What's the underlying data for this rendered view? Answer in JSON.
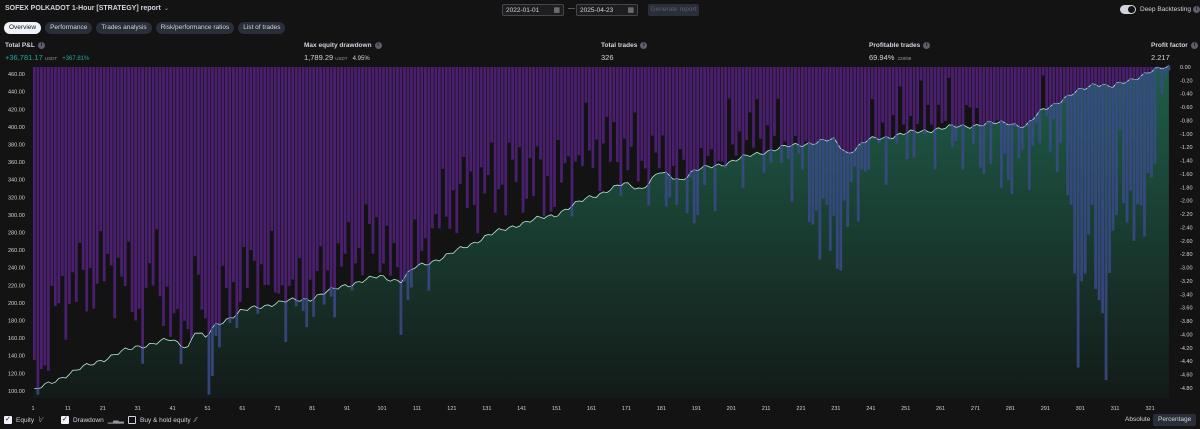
{
  "header": {
    "title": "SOFEX POLKADOT 1-Hour [STRATEGY] report",
    "date_from": "2022-01-01",
    "date_to": "2025-04-23",
    "separator": "—",
    "generate_label": "Generate report",
    "deep_backtesting_label": "Deep Backtesting"
  },
  "tabs": [
    {
      "label": "Overview",
      "active": true
    },
    {
      "label": "Performance",
      "active": false
    },
    {
      "label": "Trades analysis",
      "active": false
    },
    {
      "label": "Risk/performance ratios",
      "active": false
    },
    {
      "label": "List of trades",
      "active": false
    }
  ],
  "metrics": {
    "total_pl": {
      "label": "Total P&L",
      "value": "+36,781.17",
      "unit": "USDT",
      "pct": "+367.81%"
    },
    "max_dd": {
      "label": "Max equity drawdown",
      "value": "1,789.29",
      "unit": "USDT",
      "pct": "4.95%"
    },
    "total_trades": {
      "label": "Total trades",
      "value": "326"
    },
    "profitable": {
      "label": "Profitable trades",
      "value": "69.94%",
      "ratio": "228/98"
    },
    "profit_factor": {
      "label": "Profit factor",
      "value": "2.217"
    }
  },
  "bottom": {
    "equity_label": "Equity",
    "drawdown_label": "Drawdown",
    "buyhold_label": "Buy & hold equity",
    "absolute_label": "Absolute",
    "percentage_label": "Percentage"
  },
  "colors": {
    "equity_fill_top": "#1f5e4a",
    "equity_fill_bottom": "#131a17",
    "equity_line": "#b9e6d6",
    "drawdown_bar": "#4a1f6e",
    "drawdown_bar_under": "#3b4a8a"
  },
  "chart_data": {
    "type": "area",
    "series": [
      {
        "name": "Equity",
        "axis": "left"
      },
      {
        "name": "Drawdown",
        "axis": "right"
      }
    ],
    "x_ticks": [
      1,
      11,
      21,
      31,
      41,
      51,
      61,
      71,
      81,
      91,
      101,
      111,
      121,
      131,
      141,
      151,
      161,
      171,
      181,
      191,
      201,
      211,
      221,
      231,
      241,
      251,
      261,
      271,
      281,
      291,
      301,
      311,
      321
    ],
    "x_range": [
      1,
      326
    ],
    "y_left_ticks": [
      "100.00",
      "120.00",
      "140.00",
      "160.00",
      "180.00",
      "200.00",
      "220.00",
      "240.00",
      "260.00",
      "280.00",
      "300.00",
      "320.00",
      "340.00",
      "360.00",
      "380.00",
      "400.00",
      "420.00",
      "440.00",
      "460.00"
    ],
    "y_left_range": [
      92,
      468
    ],
    "y_right_ticks": [
      "0.00",
      "-0.20",
      "-0.40",
      "-0.60",
      "-0.80",
      "-1.00",
      "-1.20",
      "-1.40",
      "-1.60",
      "-1.80",
      "-2.00",
      "-2.20",
      "-2.40",
      "-2.60",
      "-2.80",
      "-3.00",
      "-3.20",
      "-3.40",
      "-3.60",
      "-3.80",
      "-4.00",
      "-4.20",
      "-4.40",
      "-4.60",
      "-4.80"
    ],
    "y_right_range": [
      -4.95,
      0
    ],
    "equity_keypoints": [
      [
        1,
        100
      ],
      [
        10,
        118
      ],
      [
        20,
        135
      ],
      [
        30,
        150
      ],
      [
        40,
        158
      ],
      [
        45,
        150
      ],
      [
        47,
        168
      ],
      [
        50,
        160
      ],
      [
        53,
        175
      ],
      [
        60,
        190
      ],
      [
        70,
        200
      ],
      [
        80,
        205
      ],
      [
        90,
        220
      ],
      [
        100,
        230
      ],
      [
        106,
        225
      ],
      [
        110,
        240
      ],
      [
        120,
        255
      ],
      [
        130,
        275
      ],
      [
        140,
        290
      ],
      [
        150,
        300
      ],
      [
        160,
        320
      ],
      [
        170,
        335
      ],
      [
        175,
        330
      ],
      [
        180,
        348
      ],
      [
        186,
        340
      ],
      [
        190,
        350
      ],
      [
        200,
        360
      ],
      [
        210,
        372
      ],
      [
        220,
        380
      ],
      [
        230,
        385
      ],
      [
        234,
        370
      ],
      [
        240,
        385
      ],
      [
        250,
        392
      ],
      [
        260,
        398
      ],
      [
        270,
        402
      ],
      [
        280,
        405
      ],
      [
        285,
        400
      ],
      [
        290,
        420
      ],
      [
        300,
        440
      ],
      [
        305,
        450
      ],
      [
        310,
        445
      ],
      [
        320,
        462
      ],
      [
        326,
        468
      ]
    ],
    "drawdown_keypoints": [
      [
        1,
        -4.9
      ],
      [
        8,
        -3.5
      ],
      [
        15,
        -3.2
      ],
      [
        25,
        -3.0
      ],
      [
        32,
        -3.8
      ],
      [
        36,
        -2.9
      ],
      [
        42,
        -4.2
      ],
      [
        48,
        -3.2
      ],
      [
        51,
        -4.7
      ],
      [
        55,
        -3.6
      ],
      [
        65,
        -3.0
      ],
      [
        75,
        -3.5
      ],
      [
        86,
        -3.2
      ],
      [
        92,
        -2.8
      ],
      [
        100,
        -2.5
      ],
      [
        106,
        -3.4
      ],
      [
        112,
        -2.8
      ],
      [
        120,
        -2.0
      ],
      [
        130,
        -1.8
      ],
      [
        140,
        -1.6
      ],
      [
        150,
        -1.8
      ],
      [
        160,
        -1.2
      ],
      [
        170,
        -1.3
      ],
      [
        180,
        -1.5
      ],
      [
        190,
        -1.9
      ],
      [
        200,
        -1.2
      ],
      [
        210,
        -1.0
      ],
      [
        220,
        -1.4
      ],
      [
        226,
        -2.4
      ],
      [
        232,
        -2.6
      ],
      [
        240,
        -1.2
      ],
      [
        250,
        -0.9
      ],
      [
        260,
        -0.8
      ],
      [
        270,
        -1.0
      ],
      [
        282,
        -1.5
      ],
      [
        290,
        -0.8
      ],
      [
        296,
        -1.1
      ],
      [
        300,
        -3.8
      ],
      [
        303,
        -2.5
      ],
      [
        308,
        -4.0
      ],
      [
        312,
        -1.5
      ],
      [
        318,
        -2.6
      ],
      [
        323,
        -0.5
      ],
      [
        326,
        -0.2
      ]
    ]
  }
}
